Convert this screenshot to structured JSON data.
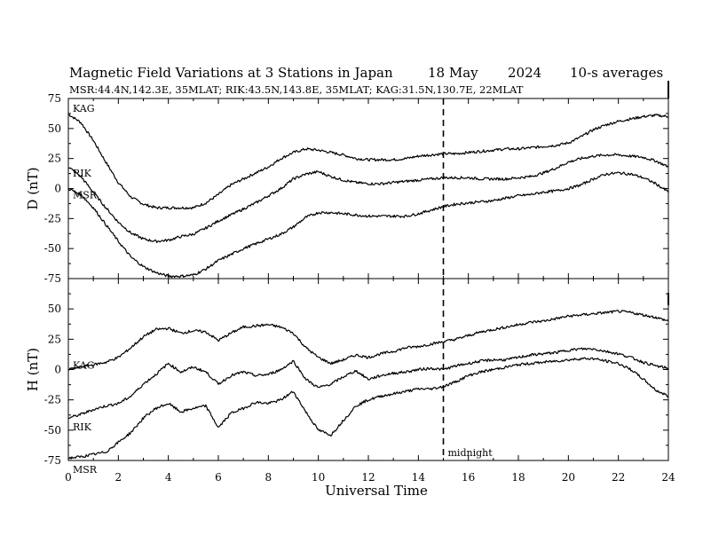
{
  "header": {
    "title": "Magnetic Field Variations at 3 Stations in Japan",
    "date": "18 May",
    "year": "2024",
    "averaging": "10-s averages",
    "stations_line": "MSR:44.4N,142.3E, 35MLAT;  RIK:43.5N,143.8E, 35MLAT;  KAG:31.5N,130.7E, 22MLAT"
  },
  "chart_data": [
    {
      "type": "line",
      "ylabel": "D (nT)",
      "ylim": [
        -75,
        75
      ],
      "yticks": [
        75,
        50,
        25,
        0,
        -25,
        -50,
        -75
      ],
      "xlim": [
        0,
        24
      ],
      "x": [
        0,
        0.5,
        1,
        1.5,
        2,
        2.5,
        3,
        3.5,
        4,
        4.5,
        5,
        5.5,
        6,
        6.5,
        7,
        7.5,
        8,
        8.5,
        9,
        9.5,
        10,
        10.5,
        11,
        11.5,
        12,
        12.5,
        13,
        13.5,
        14,
        14.5,
        15,
        15.5,
        16,
        16.5,
        17,
        17.5,
        18,
        18.5,
        19,
        19.5,
        20,
        20.5,
        21,
        21.5,
        22,
        22.5,
        23,
        23.5,
        24
      ],
      "series": [
        {
          "name": "KAG",
          "values": [
            62,
            55,
            40,
            22,
            5,
            -7,
            -13,
            -16,
            -16,
            -16,
            -16,
            -12,
            -5,
            3,
            8,
            13,
            18,
            25,
            30,
            33,
            32,
            30,
            28,
            25,
            24,
            24,
            24,
            25,
            27,
            28,
            29,
            29,
            30,
            31,
            32,
            33,
            33,
            34,
            35,
            36,
            38,
            43,
            49,
            53,
            56,
            58,
            60,
            61,
            60
          ]
        },
        {
          "name": "RIK",
          "values": [
            18,
            10,
            -3,
            -16,
            -28,
            -37,
            -42,
            -44,
            -43,
            -40,
            -38,
            -33,
            -27,
            -22,
            -17,
            -12,
            -6,
            0,
            8,
            12,
            14,
            10,
            7,
            5,
            4,
            4,
            5,
            6,
            7,
            8,
            9,
            9,
            9,
            8,
            8,
            8,
            9,
            10,
            13,
            17,
            22,
            25,
            27,
            28,
            28,
            27,
            26,
            23,
            18
          ]
        },
        {
          "name": "MSR",
          "values": [
            0,
            -5,
            -16,
            -30,
            -44,
            -57,
            -65,
            -70,
            -73,
            -73,
            -72,
            -67,
            -60,
            -55,
            -50,
            -46,
            -42,
            -38,
            -32,
            -24,
            -20,
            -20,
            -21,
            -22,
            -23,
            -23,
            -23,
            -23,
            -21,
            -18,
            -15,
            -13,
            -12,
            -11,
            -10,
            -8,
            -6,
            -5,
            -3,
            -2,
            0,
            3,
            8,
            12,
            13,
            12,
            9,
            4,
            -3
          ]
        }
      ]
    },
    {
      "type": "line",
      "ylabel": "H (nT)",
      "xlabel": "Universal Time",
      "ylim": [
        -75,
        75
      ],
      "yticks": [
        75,
        50,
        25,
        0,
        -25,
        -50,
        -75
      ],
      "xlim": [
        0,
        24
      ],
      "xticks": [
        0,
        2,
        4,
        6,
        8,
        10,
        12,
        14,
        16,
        18,
        20,
        22,
        24
      ],
      "x": [
        0,
        0.5,
        1,
        1.5,
        2,
        2.5,
        3,
        3.5,
        4,
        4.5,
        5,
        5.5,
        6,
        6.5,
        7,
        7.5,
        8,
        8.5,
        9,
        9.5,
        10,
        10.5,
        11,
        11.5,
        12,
        12.5,
        13,
        13.5,
        14,
        14.5,
        15,
        15.5,
        16,
        16.5,
        17,
        17.5,
        18,
        18.5,
        19,
        19.5,
        20,
        20.5,
        21,
        21.5,
        22,
        22.5,
        23,
        23.5,
        24
      ],
      "series": [
        {
          "name": "KAG",
          "values": [
            0,
            2,
            4,
            6,
            10,
            18,
            27,
            33,
            34,
            30,
            32,
            31,
            24,
            30,
            35,
            36,
            37,
            35,
            30,
            18,
            10,
            5,
            8,
            12,
            10,
            13,
            15,
            18,
            19,
            21,
            23,
            25,
            28,
            31,
            33,
            35,
            37,
            39,
            40,
            42,
            44,
            45,
            46,
            47,
            48,
            47,
            45,
            43,
            40
          ]
        },
        {
          "name": "RIK",
          "values": [
            -40,
            -37,
            -33,
            -30,
            -28,
            -22,
            -12,
            -4,
            5,
            -2,
            2,
            -2,
            -12,
            -5,
            -2,
            -5,
            -4,
            0,
            7,
            -8,
            -15,
            -12,
            -6,
            -1,
            -8,
            -5,
            -3,
            -2,
            0,
            1,
            0,
            3,
            5,
            7,
            8,
            8,
            10,
            12,
            13,
            14,
            16,
            17,
            17,
            15,
            13,
            10,
            6,
            3,
            1
          ]
        },
        {
          "name": "MSR",
          "values": [
            -73,
            -72,
            -70,
            -68,
            -60,
            -52,
            -40,
            -32,
            -28,
            -35,
            -32,
            -30,
            -48,
            -36,
            -32,
            -27,
            -28,
            -25,
            -18,
            -35,
            -50,
            -54,
            -42,
            -30,
            -25,
            -22,
            -20,
            -18,
            -16,
            -16,
            -14,
            -10,
            -5,
            -2,
            0,
            2,
            4,
            5,
            6,
            7,
            8,
            9,
            9,
            7,
            5,
            0,
            -8,
            -17,
            -22
          ]
        }
      ],
      "annotation": "midnight"
    }
  ],
  "midnight_marker_ut": 15
}
